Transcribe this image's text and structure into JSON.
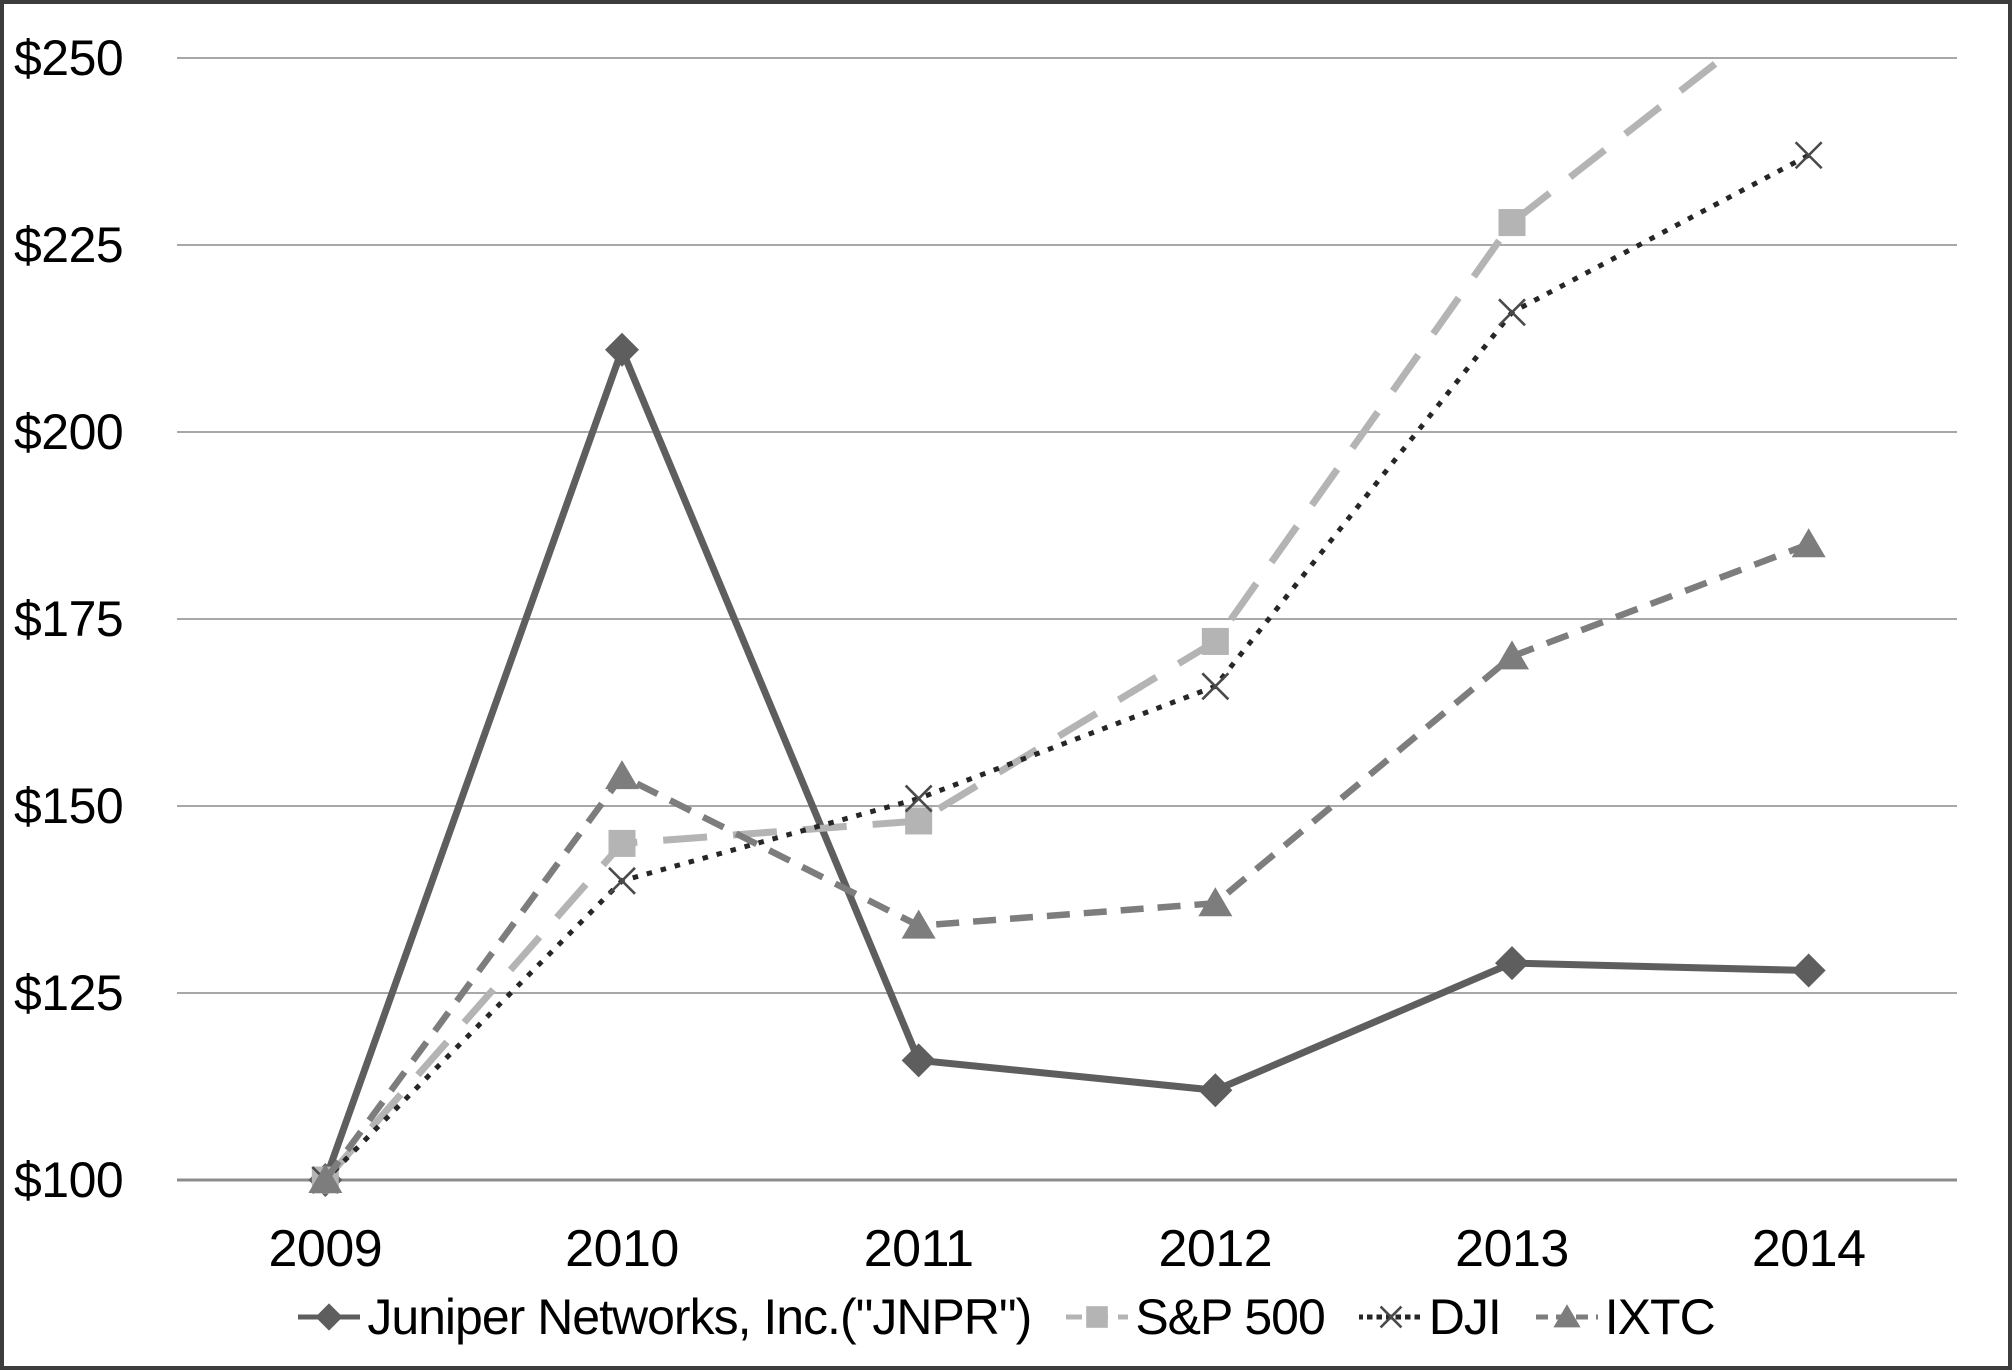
{
  "chart_data": {
    "type": "line",
    "title": "",
    "xlabel": "",
    "ylabel": "",
    "categories": [
      "2009",
      "2010",
      "2011",
      "2012",
      "2013",
      "2014"
    ],
    "series": [
      {
        "name": "Juniper Networks, Inc.(\"JNPR\")",
        "values": [
          100,
          211,
          116,
          112,
          129,
          128
        ],
        "color": "#5e5e5e",
        "line_style": "solid",
        "line_width": 7,
        "marker": "diamond"
      },
      {
        "name": "S&P 500",
        "values": [
          100,
          145,
          148,
          172,
          228,
          259
        ],
        "color": "#b4b4b4",
        "line_style": "long-dash",
        "line_width": 7,
        "marker": "square"
      },
      {
        "name": "DJI",
        "values": [
          100,
          140,
          151,
          166,
          216,
          237
        ],
        "color": "#262626",
        "marker_color": "#4a4a4a",
        "line_style": "dotted",
        "line_width": 5,
        "marker": "x"
      },
      {
        "name": "IXTC",
        "values": [
          100,
          154,
          134,
          137,
          170,
          185
        ],
        "color": "#7d7d7d",
        "line_style": "dash",
        "line_width": 6.5,
        "marker": "triangle"
      }
    ],
    "ylim": [
      100,
      250
    ],
    "y_tick_step": 25,
    "y_tick_values": [
      100,
      125,
      150,
      175,
      200,
      225,
      250
    ],
    "y_tick_labels": [
      "$100",
      "$125",
      "$150",
      "$175",
      "$200",
      "$225",
      "$250"
    ],
    "grid": "horizontal",
    "legend_position": "bottom",
    "note": "S&P 500 2014 segment rises above the $250 axis maximum and is clipped at the top gridline"
  },
  "colors": {
    "background": "#ffffff",
    "frame_border": "#3d3d3d",
    "gridline": "#a8a8a8",
    "axis_line": "#8c8c8c",
    "text": "#000000"
  }
}
